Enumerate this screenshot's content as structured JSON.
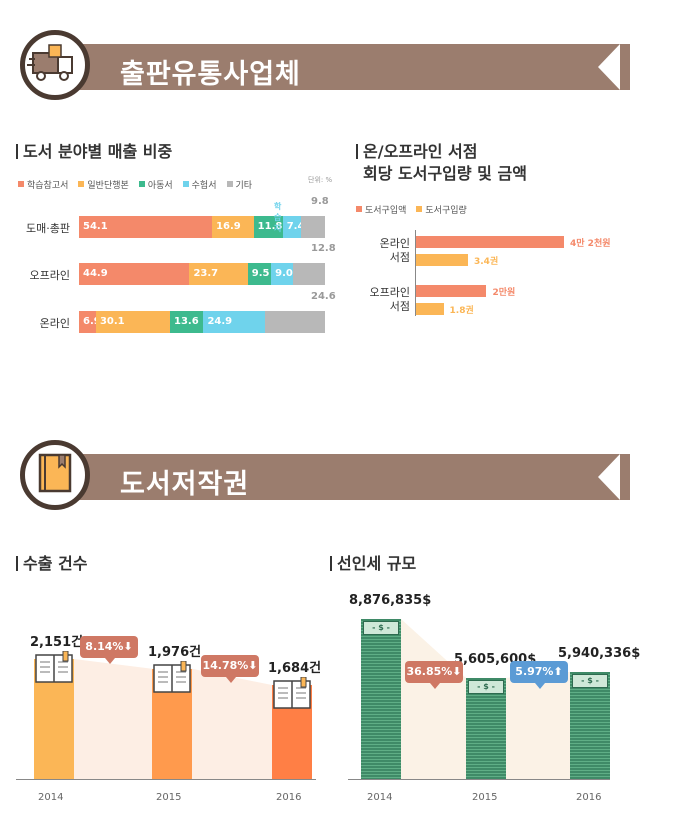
{
  "sections": {
    "publishing": {
      "title": "출판유통사업체"
    },
    "copyright": {
      "title": "도서저작권"
    }
  },
  "colors": {
    "banner": "#9b7d6e",
    "dark": "#4a3a31",
    "study": "#f4896a",
    "general": "#fbb656",
    "children": "#3dba8e",
    "exam": "#6fd3ec",
    "other": "#b8b8b8",
    "amount": "#f4896a",
    "quantity": "#fbb656",
    "exports": "#ff8a45",
    "royalty": "#3f8a67",
    "down_badge": "#cf7864",
    "up_badge": "#5b9bd5"
  },
  "chart_data": [
    {
      "id": "share",
      "type": "bar",
      "orientation": "horizontal",
      "stacked": true,
      "title": "도서 분야별 매출 비중",
      "unit": "단위: %",
      "categories": [
        "도매·총판",
        "오프라인",
        "온라인"
      ],
      "series": [
        {
          "name": "학습참고서",
          "values": [
            54.1,
            44.9,
            6.9
          ]
        },
        {
          "name": "일반단행본",
          "values": [
            16.9,
            23.7,
            30.1
          ]
        },
        {
          "name": "아동서",
          "values": [
            11.8,
            9.5,
            13.6
          ]
        },
        {
          "name": "수험서",
          "values": [
            7.4,
            9.0,
            24.9
          ]
        },
        {
          "name": "기타",
          "values": [
            9.8,
            12.8,
            24.6
          ]
        }
      ],
      "labels": [
        [
          "54.1",
          "16.9",
          "11.8",
          "7.4",
          "9.8"
        ],
        [
          "44.9",
          "23.7",
          "9.5",
          "9.0",
          "12.8"
        ],
        [
          "6.9",
          "30.1",
          "13.6",
          "24.9",
          "24.6"
        ]
      ],
      "extra_label": "학습지"
    },
    {
      "id": "purchase",
      "type": "bar",
      "orientation": "horizontal",
      "title_lines": [
        "온/오프라인 서점",
        "회당 도서구입량 및 금액"
      ],
      "legend": [
        "도서구입액",
        "도서구입량"
      ],
      "categories": [
        [
          "온라인",
          "서점"
        ],
        [
          "오프라인",
          "서점"
        ]
      ],
      "series": [
        {
          "name": "도서구입액",
          "values": [
            42000,
            20000
          ],
          "labels": [
            "4만 2천원",
            "2만원"
          ]
        },
        {
          "name": "도서구입량",
          "values": [
            3.4,
            1.8
          ],
          "labels": [
            "3.4권",
            "1.8권"
          ]
        }
      ]
    },
    {
      "id": "exports",
      "type": "bar",
      "title": "수출 건수",
      "categories": [
        "2014",
        "2015",
        "2016"
      ],
      "values": [
        2151,
        1976,
        1684
      ],
      "value_labels": [
        "2,151건",
        "1,976건",
        "1,684건"
      ],
      "changes": [
        {
          "label": "8.14%",
          "direction": "down"
        },
        {
          "label": "14.78%",
          "direction": "down"
        }
      ]
    },
    {
      "id": "royalty",
      "type": "bar",
      "title": "선인세 규모",
      "categories": [
        "2014",
        "2015",
        "2016"
      ],
      "values": [
        8876835,
        5605600,
        5940336
      ],
      "value_labels": [
        "8,876,835$",
        "5,605,600$",
        "5,940,336$"
      ],
      "changes": [
        {
          "label": "36.85%",
          "direction": "down"
        },
        {
          "label": "5.97%",
          "direction": "up"
        }
      ],
      "bill_label": "- $ -"
    }
  ]
}
